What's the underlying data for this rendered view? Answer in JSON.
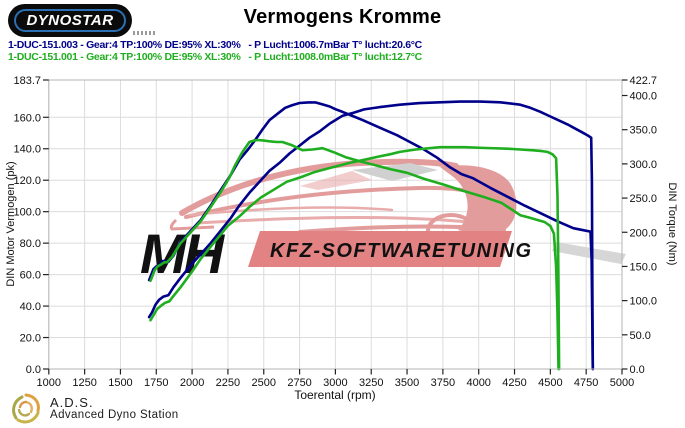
{
  "header": {
    "logo_text": "DYNOSTAR",
    "title": "Vermogens Kromme"
  },
  "legend": [
    {
      "text": "1-DUC-151.003 - Gear:4 TP:100% DE:95% XL:30%   - P Lucht:1006.7mBar T° lucht:20.6°C",
      "color": "#00008b"
    },
    {
      "text": "1-DUC-151.001 - Gear:4 TP:100% DE:95% XL:30%   - P Lucht:1008.0mBar T° lucht:12.7°C",
      "color": "#1fae1f"
    }
  ],
  "watermark": {
    "initials": "MH",
    "banner": "KFZ-SOFTWARETUNING"
  },
  "footer": {
    "abbr": "A.D.S.",
    "name": "Advanced Dyno Station"
  },
  "chart_data": {
    "type": "line",
    "title": "Vermogens Kromme",
    "grid": true,
    "legend_position": "top-left",
    "x_axis": {
      "label": "Toerental (rpm)",
      "min": 1000,
      "max": 5000,
      "tick_step": 250,
      "ticks": [
        1000,
        1250,
        1500,
        1750,
        2000,
        2250,
        2500,
        2750,
        3000,
        3250,
        3500,
        3750,
        4000,
        4250,
        4500,
        4750,
        5000
      ]
    },
    "y_left": {
      "label": "DIN Motor Vermogen (pk)",
      "min": 0,
      "max": 183.7,
      "ticks": [
        183.7,
        160,
        140,
        120,
        100,
        80,
        60,
        40,
        20,
        0
      ]
    },
    "y_right": {
      "label": "DIN Torque (Nm)",
      "min": 0,
      "max": 422.7,
      "ticks": [
        422.7,
        400,
        350,
        300,
        250,
        200,
        150,
        100,
        50,
        0
      ]
    },
    "series": [
      {
        "name": "power-1-DUC-151.003",
        "axis": "left",
        "color": "#00008b",
        "peak": {
          "rpm": 4000,
          "value": 170
        },
        "points": [
          [
            1700,
            33
          ],
          [
            1720,
            36
          ],
          [
            1745,
            41
          ],
          [
            1770,
            44
          ],
          [
            1800,
            46
          ],
          [
            1835,
            47
          ],
          [
            1870,
            52
          ],
          [
            1920,
            58
          ],
          [
            2000,
            67
          ],
          [
            2060,
            73
          ],
          [
            2130,
            80
          ],
          [
            2200,
            88
          ],
          [
            2270,
            96
          ],
          [
            2330,
            104
          ],
          [
            2400,
            112
          ],
          [
            2470,
            119
          ],
          [
            2540,
            126
          ],
          [
            2610,
            131
          ],
          [
            2680,
            137
          ],
          [
            2750,
            142
          ],
          [
            2820,
            147
          ],
          [
            2890,
            151
          ],
          [
            2960,
            156
          ],
          [
            3050,
            161
          ],
          [
            3130,
            163
          ],
          [
            3200,
            165
          ],
          [
            3310,
            166.5
          ],
          [
            3450,
            168
          ],
          [
            3590,
            169
          ],
          [
            3730,
            169.5
          ],
          [
            3870,
            170
          ],
          [
            4010,
            170
          ],
          [
            4150,
            169.5
          ],
          [
            4290,
            168
          ],
          [
            4360,
            166
          ],
          [
            4430,
            163.5
          ],
          [
            4500,
            160.5
          ],
          [
            4560,
            158
          ],
          [
            4620,
            155.5
          ],
          [
            4670,
            153
          ],
          [
            4720,
            150.5
          ],
          [
            4760,
            148.5
          ],
          [
            4785,
            147
          ],
          [
            4790,
            120
          ],
          [
            4793,
            60
          ],
          [
            4796,
            0
          ]
        ]
      },
      {
        "name": "torque-1-DUC-151.003",
        "axis": "right",
        "color": "#00008b",
        "peak": {
          "rpm": 2860,
          "value": 390
        },
        "points": [
          [
            1700,
            130
          ],
          [
            1715,
            138
          ],
          [
            1730,
            146
          ],
          [
            1750,
            150
          ],
          [
            1775,
            153
          ],
          [
            1795,
            158
          ],
          [
            1815,
            158
          ],
          [
            1835,
            157
          ],
          [
            1870,
            166
          ],
          [
            1920,
            186
          ],
          [
            1990,
            202
          ],
          [
            2060,
            218
          ],
          [
            2130,
            239
          ],
          [
            2200,
            262
          ],
          [
            2270,
            284
          ],
          [
            2330,
            306
          ],
          [
            2390,
            321
          ],
          [
            2440,
            335
          ],
          [
            2490,
            350
          ],
          [
            2540,
            364
          ],
          [
            2600,
            374
          ],
          [
            2650,
            382
          ],
          [
            2700,
            386
          ],
          [
            2750,
            389
          ],
          [
            2810,
            390
          ],
          [
            2860,
            390
          ],
          [
            2910,
            387
          ],
          [
            2960,
            384
          ],
          [
            3000,
            380
          ],
          [
            3050,
            376
          ],
          [
            3120,
            370
          ],
          [
            3190,
            364
          ],
          [
            3310,
            353
          ],
          [
            3430,
            342
          ],
          [
            3520,
            332
          ],
          [
            3610,
            322
          ],
          [
            3710,
            309
          ],
          [
            3800,
            295
          ],
          [
            3880,
            285
          ],
          [
            3960,
            279
          ],
          [
            4080,
            265
          ],
          [
            4200,
            252
          ],
          [
            4320,
            239
          ],
          [
            4430,
            228
          ],
          [
            4550,
            216
          ],
          [
            4660,
            206
          ],
          [
            4730,
            203
          ],
          [
            4780,
            201
          ],
          [
            4788,
            160
          ],
          [
            4792,
            80
          ],
          [
            4796,
            0
          ]
        ]
      },
      {
        "name": "power-1-DUC-151.001",
        "axis": "left",
        "color": "#1fae1f",
        "peak": {
          "rpm": 3900,
          "value": 141
        },
        "points": [
          [
            1710,
            31
          ],
          [
            1730,
            34
          ],
          [
            1755,
            38
          ],
          [
            1780,
            40
          ],
          [
            1810,
            42
          ],
          [
            1840,
            43
          ],
          [
            1875,
            47
          ],
          [
            1920,
            52
          ],
          [
            2000,
            62
          ],
          [
            2060,
            70
          ],
          [
            2150,
            80
          ],
          [
            2250,
            91
          ],
          [
            2330,
            97
          ],
          [
            2400,
            103
          ],
          [
            2480,
            109
          ],
          [
            2570,
            114
          ],
          [
            2660,
            119
          ],
          [
            2760,
            122
          ],
          [
            2850,
            125
          ],
          [
            2970,
            128
          ],
          [
            3100,
            131
          ],
          [
            3200,
            133
          ],
          [
            3300,
            135
          ],
          [
            3380,
            136.5
          ],
          [
            3450,
            138
          ],
          [
            3560,
            139.5
          ],
          [
            3730,
            141
          ],
          [
            3820,
            141
          ],
          [
            3900,
            141
          ],
          [
            4050,
            140.5
          ],
          [
            4200,
            140
          ],
          [
            4290,
            139.5
          ],
          [
            4380,
            139
          ],
          [
            4440,
            138.5
          ],
          [
            4480,
            138
          ],
          [
            4515,
            136.5
          ],
          [
            4540,
            134
          ],
          [
            4550,
            110
          ],
          [
            4556,
            60
          ],
          [
            4561,
            0
          ]
        ]
      },
      {
        "name": "torque-1-DUC-151.001",
        "axis": "right",
        "color": "#1fae1f",
        "peak": {
          "rpm": 2460,
          "value": 335
        },
        "points": [
          [
            1710,
            129
          ],
          [
            1725,
            137
          ],
          [
            1740,
            145
          ],
          [
            1760,
            150
          ],
          [
            1785,
            153
          ],
          [
            1805,
            156
          ],
          [
            1825,
            156
          ],
          [
            1860,
            164
          ],
          [
            1920,
            184
          ],
          [
            1990,
            200
          ],
          [
            2060,
            216
          ],
          [
            2130,
            237
          ],
          [
            2200,
            259
          ],
          [
            2260,
            280
          ],
          [
            2300,
            298
          ],
          [
            2350,
            317
          ],
          [
            2400,
            332
          ],
          [
            2430,
            334
          ],
          [
            2460,
            335
          ],
          [
            2500,
            334
          ],
          [
            2540,
            333
          ],
          [
            2590,
            332
          ],
          [
            2630,
            332
          ],
          [
            2700,
            327
          ],
          [
            2770,
            320
          ],
          [
            2840,
            321
          ],
          [
            2910,
            323
          ],
          [
            2990,
            317
          ],
          [
            3070,
            310
          ],
          [
            3170,
            304
          ],
          [
            3280,
            298
          ],
          [
            3390,
            292
          ],
          [
            3500,
            287
          ],
          [
            3620,
            278
          ],
          [
            3750,
            270
          ],
          [
            3870,
            262
          ],
          [
            4030,
            252
          ],
          [
            4160,
            243
          ],
          [
            4290,
            225
          ],
          [
            4360,
            221
          ],
          [
            4410,
            218
          ],
          [
            4460,
            215
          ],
          [
            4500,
            209
          ],
          [
            4525,
            198
          ],
          [
            4540,
            150
          ],
          [
            4550,
            80
          ],
          [
            4557,
            0
          ]
        ]
      }
    ]
  }
}
